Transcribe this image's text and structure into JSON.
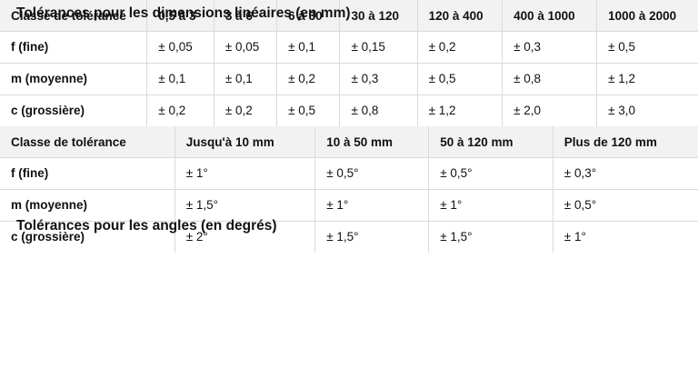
{
  "sections": [
    {
      "title": "Tolérances pour les dimensions linéaires (en mm)",
      "headers": [
        "Classe de tolérance",
        "0,5 à 3",
        "3 à 6",
        "6 à 30",
        "30 à 120",
        "120 à 400",
        "400 à 1000",
        "1000 à 2000"
      ],
      "rows": [
        [
          "f (fine)",
          "± 0,05",
          "± 0,05",
          "± 0,1",
          "± 0,15",
          "± 0,2",
          "± 0,3",
          "± 0,5"
        ],
        [
          "m (moyenne)",
          "± 0,1",
          "± 0,1",
          "± 0,2",
          "± 0,3",
          "± 0,5",
          "± 0,8",
          "± 1,2"
        ],
        [
          "c (grossière)",
          "± 0,2",
          "± 0,2",
          "± 0,5",
          "± 0,8",
          "± 1,2",
          "± 2,0",
          "± 3,0"
        ]
      ]
    },
    {
      "title": "Tolérances pour les angles (en degrés)",
      "headers": [
        "Classe de tolérance",
        "Jusqu'à 10 mm",
        "10 à 50 mm",
        "50 à 120 mm",
        "Plus de 120 mm"
      ],
      "rows": [
        [
          "f (fine)",
          "± 1°",
          "± 0,5°",
          "± 0,5°",
          "± 0,3°"
        ],
        [
          "m (moyenne)",
          "± 1,5°",
          "± 1°",
          "± 1°",
          "± 0,5°"
        ],
        [
          "c (grossière)",
          "± 2°",
          "± 1,5°",
          "± 1,5°",
          "± 1°"
        ]
      ]
    }
  ]
}
